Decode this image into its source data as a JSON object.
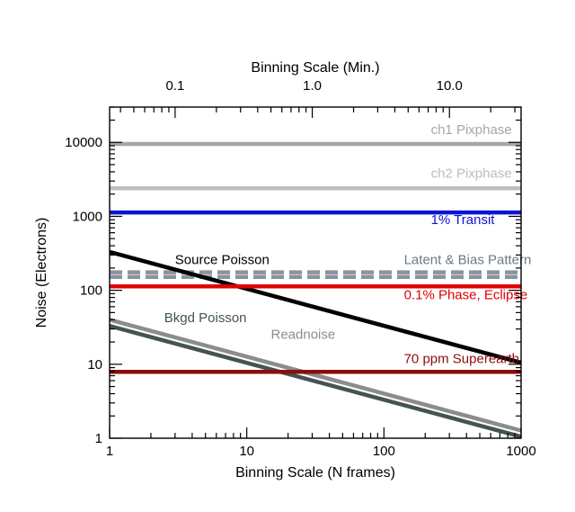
{
  "chart_data": {
    "type": "line",
    "xlabel": "Binning Scale (N frames)",
    "x2label": "Binning Scale (Min.)",
    "ylabel": "Noise (Electrons)",
    "xscale": "log",
    "yscale": "log",
    "xlim": [
      1,
      1000
    ],
    "ylim": [
      1,
      30000
    ],
    "x2lim": [
      0.0333,
      33.3
    ],
    "x_ticks": [
      1,
      10,
      100,
      1000
    ],
    "x_tick_labels": [
      "1",
      "10",
      "100",
      "1000"
    ],
    "x2_ticks": [
      0.1,
      1.0,
      10.0
    ],
    "x2_tick_labels": [
      "0.1",
      "1.0",
      "10.0"
    ],
    "y_ticks": [
      1,
      10,
      100,
      1000,
      10000
    ],
    "y_tick_labels": [
      "1",
      "10",
      "100",
      "1000",
      "10000"
    ],
    "grid": false,
    "legend": "none",
    "series": [
      {
        "name": "ch1 Pixphase",
        "x": [
          1,
          1000
        ],
        "y": [
          9500,
          9500
        ],
        "color": "#a6a6a6",
        "dash": false
      },
      {
        "name": "ch2 Pixphase",
        "x": [
          1,
          1000
        ],
        "y": [
          2400,
          2400
        ],
        "color": "#bdbdbd",
        "dash": false
      },
      {
        "name": "1% Transit",
        "x": [
          1,
          1000
        ],
        "y": [
          1130,
          1130
        ],
        "color": "#0a14d4",
        "dash": false
      },
      {
        "name": "Latent & Bias Pattern",
        "x": [
          1,
          1000
        ],
        "y": [
          175,
          175
        ],
        "color": "#8a93a0",
        "dash": true
      },
      {
        "name": "",
        "x": [
          1,
          1000
        ],
        "y": [
          152,
          152
        ],
        "color": "#8a93a0",
        "dash": true
      },
      {
        "name": "Source Poisson",
        "x": [
          1,
          1000
        ],
        "y": [
          330,
          10.5
        ],
        "color": "#000000",
        "dash": false
      },
      {
        "name": "0.1% Phase,  Eclipse",
        "x": [
          1,
          1000
        ],
        "y": [
          113,
          113
        ],
        "color": "#e00000",
        "dash": false
      },
      {
        "name": "Readnoise",
        "x": [
          1,
          1000
        ],
        "y": [
          40,
          1.27
        ],
        "color": "#8c8c8c",
        "dash": false
      },
      {
        "name": "Bkgd Poisson",
        "x": [
          1,
          1000
        ],
        "y": [
          33,
          1.05
        ],
        "color": "#445353",
        "dash": false
      },
      {
        "name": "70 ppm Superearth",
        "x": [
          1,
          1000
        ],
        "y": [
          7.9,
          7.9
        ],
        "color": "#8a0d0d",
        "dash": false
      }
    ],
    "annotations": [
      {
        "text": "ch1 Pixphase",
        "x": 220,
        "y": 13000,
        "color": "#a6a6a6"
      },
      {
        "text": "ch2 Pixphase",
        "x": 220,
        "y": 3350,
        "color": "#bdbdbd"
      },
      {
        "text": "1% Transit",
        "x": 220,
        "y": 790,
        "color": "#0a14d4"
      },
      {
        "text": "Source Poisson",
        "x": 3.0,
        "y": 225,
        "color": "#000000"
      },
      {
        "text": "Latent & Bias Pattern",
        "x": 140,
        "y": 225,
        "color": "#6e7888"
      },
      {
        "text": "0.1% Phase,  Eclipse",
        "x": 140,
        "y": 76,
        "color": "#e00000"
      },
      {
        "text": "Bkgd Poisson",
        "x": 2.5,
        "y": 37,
        "color": "#445353"
      },
      {
        "text": "Readnoise",
        "x": 15,
        "y": 22,
        "color": "#8c8c8c"
      },
      {
        "text": "70 ppm Superearth",
        "x": 140,
        "y": 10.3,
        "color": "#8a0d0d"
      }
    ]
  }
}
